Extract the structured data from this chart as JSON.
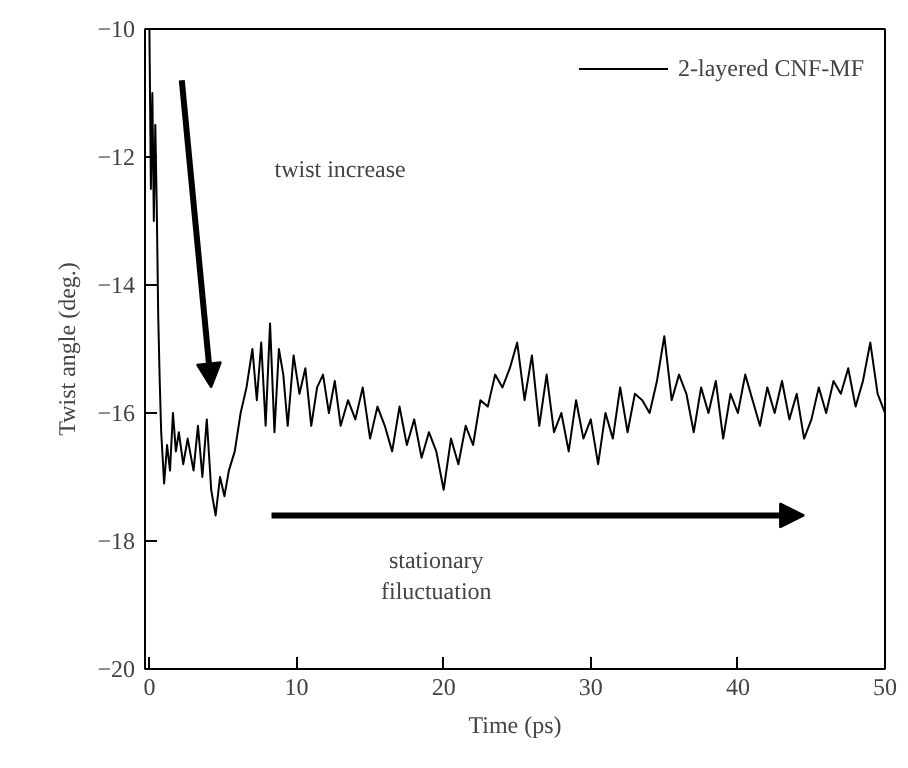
{
  "chart_data": {
    "type": "line",
    "xlabel": "Time (ps)",
    "ylabel": "Twist angle (deg.)",
    "xlim": [
      -0.3,
      50
    ],
    "ylim": [
      -20,
      -10
    ],
    "xticks": [
      0,
      10,
      20,
      30,
      40,
      50
    ],
    "yticks": [
      -20,
      -18,
      -16,
      -14,
      -12,
      -10
    ],
    "grid": false,
    "legend": "top right",
    "line_style": "solid",
    "marker": "none",
    "series": [
      {
        "name": "2-layered CNF-MF",
        "color": "#000000",
        "x": [
          0,
          0.1,
          0.2,
          0.3,
          0.4,
          0.5,
          0.6,
          0.7,
          0.8,
          1.0,
          1.2,
          1.4,
          1.6,
          1.8,
          2.0,
          2.3,
          2.6,
          3.0,
          3.3,
          3.6,
          3.9,
          4.2,
          4.5,
          4.8,
          5.1,
          5.4,
          5.8,
          6.2,
          6.6,
          7.0,
          7.3,
          7.6,
          7.9,
          8.2,
          8.5,
          8.8,
          9.1,
          9.4,
          9.8,
          10.2,
          10.6,
          11.0,
          11.4,
          11.8,
          12.2,
          12.6,
          13.0,
          13.5,
          14.0,
          14.5,
          15.0,
          15.5,
          16.0,
          16.5,
          17.0,
          17.5,
          18.0,
          18.5,
          19.0,
          19.5,
          20.0,
          20.5,
          21.0,
          21.5,
          22.0,
          22.5,
          23.0,
          23.5,
          24.0,
          24.5,
          25.0,
          25.5,
          26.0,
          26.5,
          27.0,
          27.5,
          28.0,
          28.5,
          29.0,
          29.5,
          30.0,
          30.5,
          31.0,
          31.5,
          32.0,
          32.5,
          33.0,
          33.5,
          34.0,
          34.5,
          35.0,
          35.5,
          36.0,
          36.5,
          37.0,
          37.5,
          38.0,
          38.5,
          39.0,
          39.5,
          40.0,
          40.5,
          41.0,
          41.5,
          42.0,
          42.5,
          43.0,
          43.5,
          44.0,
          44.5,
          45.0,
          45.5,
          46.0,
          46.5,
          47.0,
          47.5,
          48.0,
          48.5,
          49.0,
          49.5,
          50.0
        ],
        "values": [
          -10.0,
          -12.5,
          -11.0,
          -13.0,
          -11.5,
          -12.8,
          -14.5,
          -15.5,
          -16.3,
          -17.1,
          -16.5,
          -16.9,
          -16.0,
          -16.6,
          -16.3,
          -16.8,
          -16.4,
          -16.9,
          -16.2,
          -17.0,
          -16.1,
          -17.2,
          -17.6,
          -17.0,
          -17.3,
          -16.9,
          -16.6,
          -16.0,
          -15.6,
          -15.0,
          -15.8,
          -14.9,
          -16.2,
          -14.6,
          -16.3,
          -15.0,
          -15.4,
          -16.2,
          -15.1,
          -15.7,
          -15.3,
          -16.2,
          -15.6,
          -15.4,
          -16.0,
          -15.5,
          -16.2,
          -15.8,
          -16.1,
          -15.6,
          -16.4,
          -15.9,
          -16.2,
          -16.6,
          -15.9,
          -16.5,
          -16.1,
          -16.7,
          -16.3,
          -16.6,
          -17.2,
          -16.4,
          -16.8,
          -16.2,
          -16.5,
          -15.8,
          -15.9,
          -15.4,
          -15.6,
          -15.3,
          -14.9,
          -15.8,
          -15.1,
          -16.2,
          -15.4,
          -16.3,
          -16.0,
          -16.6,
          -15.8,
          -16.4,
          -16.1,
          -16.8,
          -16.0,
          -16.4,
          -15.6,
          -16.3,
          -15.7,
          -15.8,
          -16.0,
          -15.5,
          -14.8,
          -15.8,
          -15.4,
          -15.7,
          -16.3,
          -15.6,
          -16.0,
          -15.5,
          -16.4,
          -15.7,
          -16.0,
          -15.4,
          -15.8,
          -16.2,
          -15.6,
          -16.0,
          -15.5,
          -16.1,
          -15.7,
          -16.4,
          -16.1,
          -15.6,
          -16.0,
          -15.5,
          -15.7,
          -15.3,
          -15.9,
          -15.5,
          -14.9,
          -15.7,
          -16.0
        ]
      }
    ],
    "annotations": [
      "twist increase",
      "stationary\nfiluctuation"
    ]
  }
}
